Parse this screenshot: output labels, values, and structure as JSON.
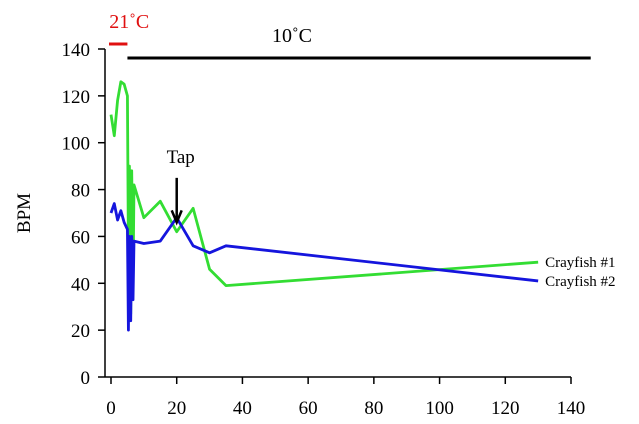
{
  "chart_data": {
    "type": "line",
    "title": "",
    "xlabel": "",
    "ylabel": "BPM",
    "xlim": [
      0,
      140
    ],
    "ylim": [
      0,
      140
    ],
    "x_ticks": [
      "0",
      "20",
      "40",
      "60",
      "80",
      "100",
      "120",
      "140"
    ],
    "y_ticks": [
      "0",
      "20",
      "40",
      "60",
      "80",
      "100",
      "120",
      "140"
    ],
    "grid": false,
    "series": [
      {
        "name": "Crayfish #1",
        "color": "#33dd33",
        "x": [
          0,
          1,
          2,
          3,
          4,
          5,
          5.3,
          5.6,
          6,
          6.3,
          6.7,
          7,
          10,
          15,
          20,
          25,
          30,
          35,
          130
        ],
        "y": [
          112,
          103,
          118,
          126,
          125,
          120,
          53,
          90,
          27,
          88,
          40,
          82,
          68,
          75,
          62,
          72,
          46,
          39,
          49
        ]
      },
      {
        "name": "Crayfish #2",
        "color": "#1515dd",
        "x": [
          0,
          1,
          2,
          3,
          4,
          5,
          5.3,
          5.6,
          6,
          6.3,
          6.7,
          7,
          10,
          15,
          20,
          25,
          30,
          35,
          130
        ],
        "y": [
          70,
          74,
          67,
          71,
          66,
          63,
          20,
          60,
          24,
          60,
          33,
          58,
          57,
          58,
          68,
          56,
          53,
          56,
          41
        ]
      }
    ],
    "annotations": {
      "warm_label": "21˚C",
      "cold_label": "10˚C",
      "tap_label": "Tap",
      "warm_range": [
        0,
        5
      ],
      "cold_range": [
        5,
        146
      ],
      "tap_x": 20,
      "tap_y_top": 85,
      "tap_y_bottom": 66,
      "warm_color": "#e01010",
      "cold_color": "#000000"
    }
  }
}
